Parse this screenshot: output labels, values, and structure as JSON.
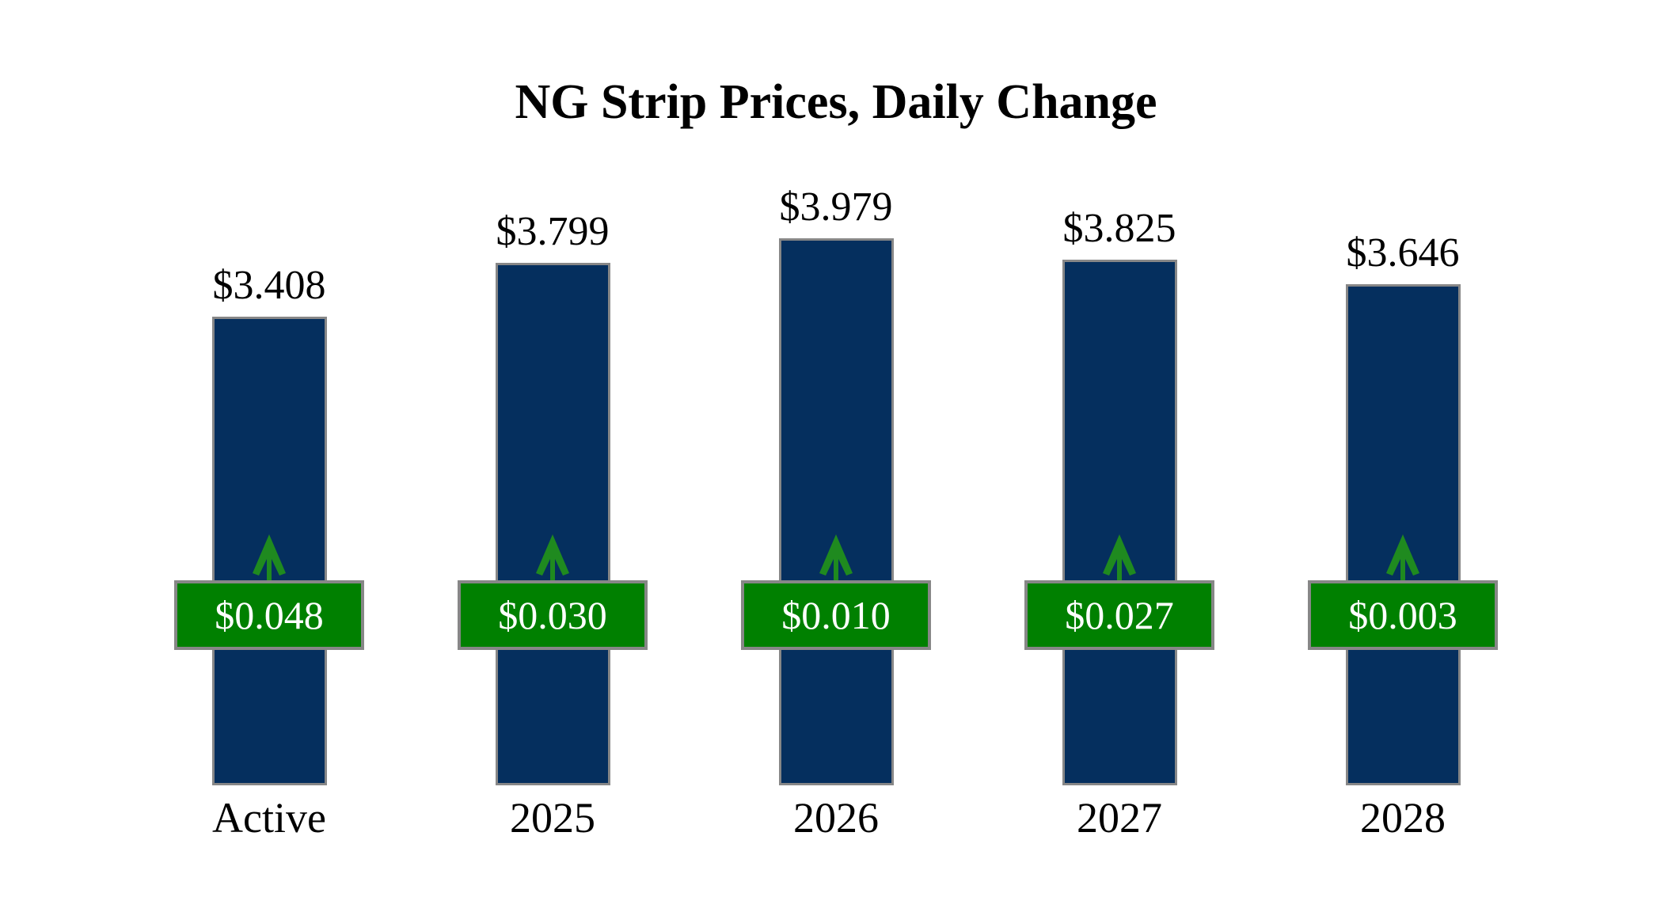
{
  "title": "NG Strip Prices, Daily Change",
  "chart_data": {
    "type": "bar",
    "title": "NG Strip Prices, Daily Change",
    "categories": [
      "Active",
      "2025",
      "2026",
      "2027",
      "2028"
    ],
    "series": [
      {
        "name": "strip_price_usd",
        "values": [
          3.408,
          3.799,
          3.979,
          3.825,
          3.646
        ],
        "labels": [
          "$3.408",
          "$3.799",
          "$3.979",
          "$3.825",
          "$3.646"
        ]
      },
      {
        "name": "daily_change_usd",
        "values": [
          0.048,
          0.03,
          0.01,
          0.027,
          0.003
        ],
        "labels": [
          "$0.048",
          "$0.030",
          "$0.010",
          "$0.027",
          "$0.003"
        ]
      }
    ],
    "ylim": [
      0,
      4.0
    ],
    "grid": false,
    "legend": "none",
    "axis_lines": "none",
    "change_direction": "up",
    "colors": {
      "bar_fill": "#052F5E",
      "bar_border": "#878787",
      "badge_fill": "#008000",
      "badge_border": "#878787",
      "badge_text": "#FFFFFF",
      "arrow": "#1F8A1F",
      "label_text": "#000000",
      "background": "#FFFFFF"
    }
  }
}
